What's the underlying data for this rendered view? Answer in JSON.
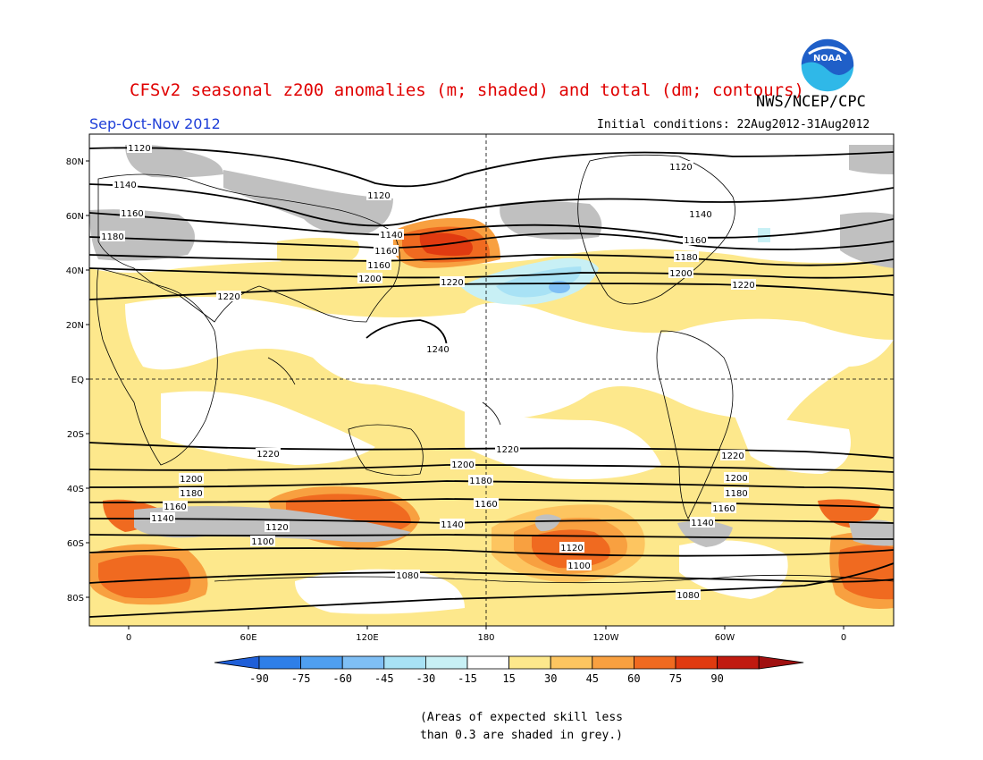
{
  "header": {
    "title": "CFSv2 seasonal z200 anomalies (m; shaded) and total (dm; contours)",
    "agency": "NWS/NCEP/CPC",
    "season": "Sep-Oct-Nov 2012",
    "initial_conditions": "Initial conditions: 22Aug2012-31Aug2012",
    "logo_text": "NOAA"
  },
  "map": {
    "lat_labels": [
      "80N",
      "60N",
      "40N",
      "20N",
      "EQ",
      "20S",
      "40S",
      "60S",
      "80S"
    ],
    "lon_labels": [
      "0",
      "60E",
      "120E",
      "180",
      "120W",
      "60W",
      "0"
    ],
    "contour_labels": [
      "1080",
      "1100",
      "1120",
      "1140",
      "1160",
      "1180",
      "1200",
      "1220",
      "1240"
    ],
    "grey_meaning": "skill < 0.3"
  },
  "colorbar": {
    "ticks": [
      "-90",
      "-75",
      "-60",
      "-45",
      "-30",
      "-15",
      "15",
      "30",
      "45",
      "60",
      "75",
      "90"
    ],
    "colors": [
      "#1f5fd8",
      "#2f7fe8",
      "#4f9ff0",
      "#7fbff5",
      "#a8e2f5",
      "#c8f0f5",
      "#ffffff",
      "#fde88c",
      "#fdc560",
      "#f8a040",
      "#f06a20",
      "#e03a10",
      "#c01a10",
      "#a01010"
    ]
  },
  "note": {
    "line1": "(Areas of expected skill less",
    "line2": "than 0.3 are shaded in grey.)"
  },
  "colors": {
    "title": "#e00000",
    "season": "#1f3fd8",
    "skill_grey": "#c0c0c0"
  }
}
